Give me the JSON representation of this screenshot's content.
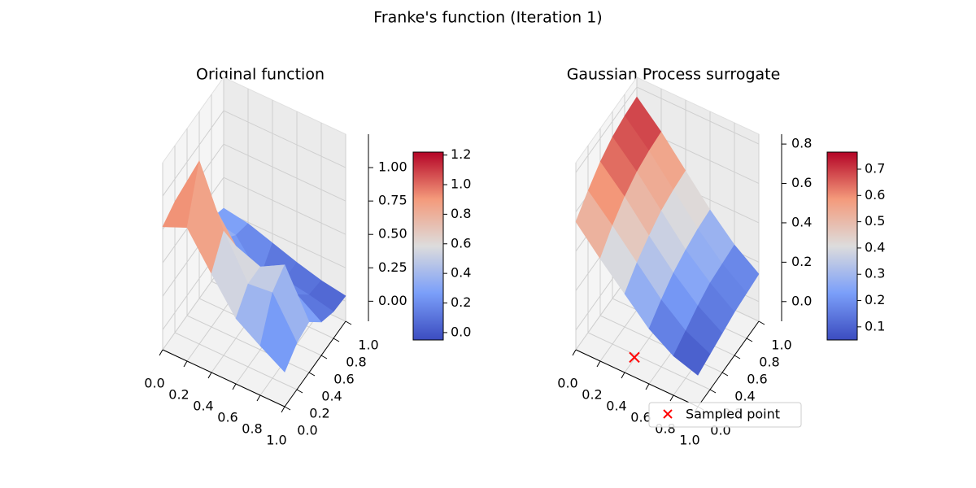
{
  "title": "Franke's function (Iteration 1)",
  "chart_data": [
    {
      "type": "surface",
      "title": "Original function",
      "x": [
        0,
        0.2,
        0.4,
        0.6,
        0.8,
        1
      ],
      "y": [
        0,
        0.2,
        0.4,
        0.6,
        0.8,
        1
      ],
      "z": [
        [
          0.77,
          0.85,
          0.59,
          0.34,
          0.22,
          0.11
        ],
        [
          0.83,
          1.22,
          0.78,
          0.47,
          0.49,
          0.2
        ],
        [
          0.61,
          0.79,
          0.54,
          0.47,
          0.57,
          0.23
        ],
        [
          0.4,
          0.38,
          0.27,
          0.23,
          0.22,
          0.1
        ],
        [
          0.32,
          0.28,
          0.05,
          0.12,
          0.09,
          0.05
        ],
        [
          0.27,
          0.24,
          0.18,
          0.12,
          0.07,
          0.04
        ]
      ],
      "xlim": [
        0,
        1
      ],
      "ylim": [
        0,
        1
      ],
      "zlim": [
        -0.15,
        1.25
      ],
      "xticks": [
        {
          "value": 0,
          "label": "0.0"
        },
        0.2,
        0.4,
        0.6,
        0.8,
        {
          "value": 1,
          "label": "1.0"
        }
      ],
      "yticks": [
        {
          "value": 0,
          "label": "0.0"
        },
        0.2,
        0.4,
        0.6,
        0.8,
        {
          "value": 1,
          "label": "1.0"
        }
      ],
      "zticks": [
        {
          "value": 0,
          "label": "0.00"
        },
        {
          "value": 0.25,
          "label": "0.25"
        },
        {
          "value": 0.5,
          "label": "0.50"
        },
        {
          "value": 0.75,
          "label": "0.75"
        },
        {
          "value": 1,
          "label": "1.00"
        }
      ],
      "colormap": [
        "#3b4cc0",
        "#7b9ff9",
        "#dddcdc",
        "#f49a7b",
        "#b40426"
      ],
      "clim": [
        -0.05,
        1.22
      ],
      "cticks": [
        {
          "value": 0,
          "label": "0.0"
        },
        0.2,
        0.4,
        0.6,
        0.8,
        {
          "value": 1,
          "label": "1.0"
        },
        1.2
      ]
    },
    {
      "type": "surface",
      "title": "Gaussian Process surrogate",
      "x": [
        0,
        0.2,
        0.4,
        0.6,
        0.8,
        1
      ],
      "y": [
        0,
        0.2,
        0.4,
        0.6,
        0.8,
        1
      ],
      "z": [
        [
          0.55,
          0.42,
          0.3,
          0.18,
          0.1,
          0.06
        ],
        [
          0.62,
          0.5,
          0.37,
          0.24,
          0.14,
          0.08
        ],
        [
          0.68,
          0.56,
          0.42,
          0.29,
          0.18,
          0.1
        ],
        [
          0.72,
          0.6,
          0.46,
          0.32,
          0.21,
          0.12
        ],
        [
          0.74,
          0.62,
          0.48,
          0.34,
          0.22,
          0.13
        ],
        [
          0.75,
          0.63,
          0.49,
          0.35,
          0.23,
          0.14
        ]
      ],
      "xlim": [
        0,
        1
      ],
      "ylim": [
        0,
        1
      ],
      "zlim": [
        -0.1,
        0.85
      ],
      "xticks": [
        {
          "value": 0,
          "label": "0.0"
        },
        0.2,
        0.4,
        0.6,
        0.8,
        {
          "value": 1,
          "label": "1.0"
        }
      ],
      "yticks": [
        {
          "value": 0,
          "label": "0.0"
        },
        0.2,
        0.4,
        0.6,
        0.8,
        {
          "value": 1,
          "label": "1.0"
        }
      ],
      "zticks": [
        {
          "value": 0,
          "label": "0.0"
        },
        0.2,
        0.4,
        0.6,
        0.8
      ],
      "colormap": [
        "#3b4cc0",
        "#7b9ff9",
        "#dddcdc",
        "#f49a7b",
        "#b40426"
      ],
      "clim": [
        0.05,
        0.765
      ],
      "cticks": [
        0.1,
        0.2,
        0.3,
        0.4,
        0.5,
        0.6,
        0.7
      ],
      "scatter": {
        "name": "Sampled point",
        "color": "#ff0000",
        "x": [
          0.48
        ],
        "y": [
          0.0
        ],
        "z": [
          0.0
        ]
      },
      "legend": "lower right"
    }
  ]
}
